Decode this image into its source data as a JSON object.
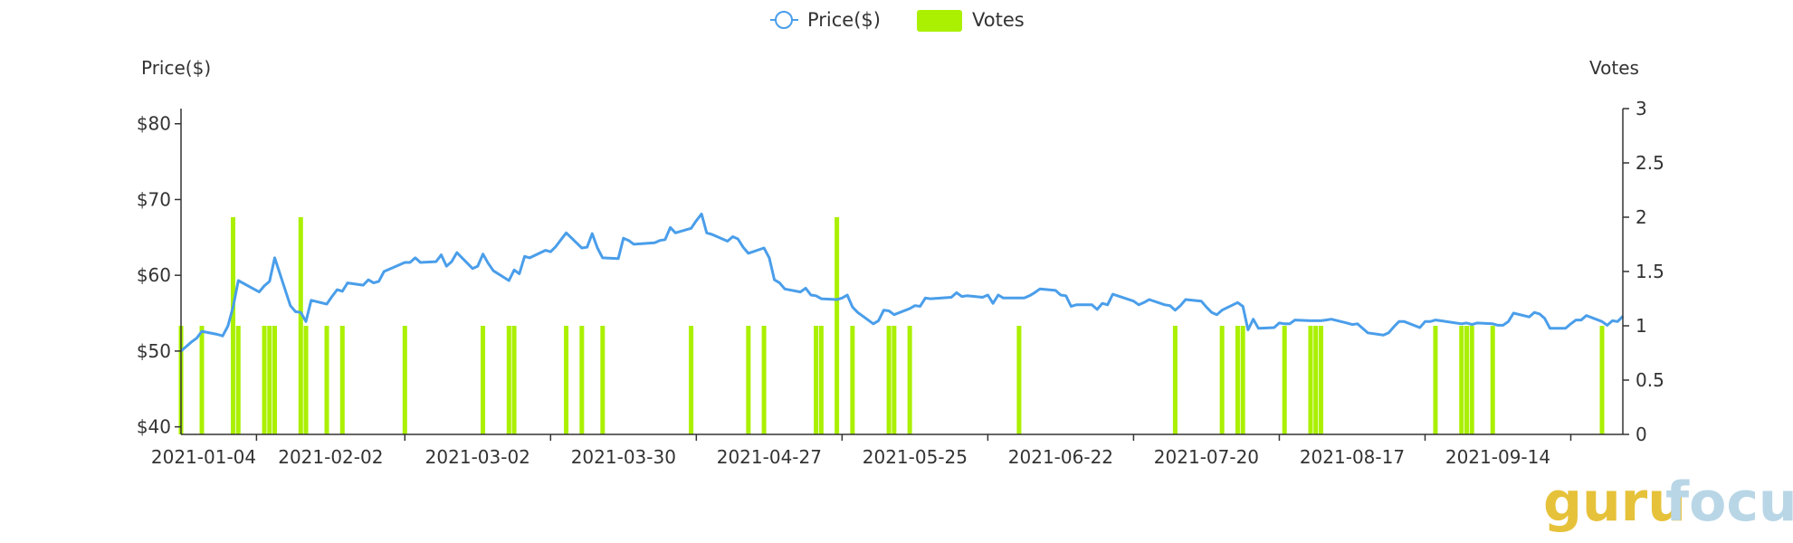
{
  "legend": {
    "price_label": "Price($)",
    "votes_label": "Votes"
  },
  "watermark": {
    "part1": "guru",
    "part2": "focus"
  },
  "colors": {
    "price_line": "#4a9eea",
    "votes_bar": "#aaf000",
    "axis": "#333333"
  },
  "chart_data": {
    "type": "bar+line",
    "x_tick_labels": [
      "2021-01-04",
      "2021-02-02",
      "2021-03-02",
      "2021-03-30",
      "2021-04-27",
      "2021-05-25",
      "2021-06-22",
      "2021-07-20",
      "2021-08-17",
      "2021-09-14"
    ],
    "x_range": [
      "2021-01-04",
      "2021-10-08"
    ],
    "left_axis": {
      "title": "Price($)",
      "range": [
        39,
        82
      ],
      "ticks": [
        40,
        50,
        60,
        70,
        80
      ],
      "tick_labels": [
        "$40",
        "$50",
        "$60",
        "$70",
        "$80"
      ]
    },
    "right_axis": {
      "title": "Votes",
      "range": [
        0,
        3
      ],
      "ticks": [
        0,
        0.5,
        1,
        1.5,
        2,
        2.5,
        3
      ],
      "tick_labels": [
        "0",
        "0.5",
        "1",
        "1.5",
        "2",
        "2.5",
        "3"
      ]
    },
    "series": [
      {
        "name": "Price($)",
        "kind": "line",
        "axis": "left",
        "points": [
          [
            "2021-01-04",
            50.0
          ],
          [
            "2021-01-05",
            50.6
          ],
          [
            "2021-01-06",
            51.2
          ],
          [
            "2021-01-07",
            51.7
          ],
          [
            "2021-01-08",
            52.6
          ],
          [
            "2021-01-11",
            52.2
          ],
          [
            "2021-01-12",
            52.0
          ],
          [
            "2021-01-13",
            53.3
          ],
          [
            "2021-01-14",
            55.8
          ],
          [
            "2021-01-15",
            59.3
          ],
          [
            "2021-01-19",
            57.8
          ],
          [
            "2021-01-20",
            58.6
          ],
          [
            "2021-01-21",
            59.2
          ],
          [
            "2021-01-22",
            62.3
          ],
          [
            "2021-01-25",
            56.0
          ],
          [
            "2021-01-26",
            55.2
          ],
          [
            "2021-01-27",
            55.1
          ],
          [
            "2021-01-28",
            53.9
          ],
          [
            "2021-01-29",
            56.7
          ],
          [
            "2021-02-01",
            56.2
          ],
          [
            "2021-02-02",
            57.2
          ],
          [
            "2021-02-03",
            58.1
          ],
          [
            "2021-02-04",
            57.9
          ],
          [
            "2021-02-05",
            59.0
          ],
          [
            "2021-02-08",
            58.7
          ],
          [
            "2021-02-09",
            59.4
          ],
          [
            "2021-02-10",
            59.0
          ],
          [
            "2021-02-11",
            59.2
          ],
          [
            "2021-02-12",
            60.5
          ],
          [
            "2021-02-16",
            61.7
          ],
          [
            "2021-02-17",
            61.7
          ],
          [
            "2021-02-18",
            62.3
          ],
          [
            "2021-02-19",
            61.7
          ],
          [
            "2021-02-22",
            61.8
          ],
          [
            "2021-02-23",
            62.7
          ],
          [
            "2021-02-24",
            61.2
          ],
          [
            "2021-02-25",
            61.8
          ],
          [
            "2021-02-26",
            63.0
          ],
          [
            "2021-03-01",
            60.9
          ],
          [
            "2021-03-02",
            61.2
          ],
          [
            "2021-03-03",
            62.8
          ],
          [
            "2021-03-04",
            61.6
          ],
          [
            "2021-03-05",
            60.6
          ],
          [
            "2021-03-08",
            59.3
          ],
          [
            "2021-03-09",
            60.7
          ],
          [
            "2021-03-10",
            60.2
          ],
          [
            "2021-03-11",
            62.5
          ],
          [
            "2021-03-12",
            62.3
          ],
          [
            "2021-03-15",
            63.3
          ],
          [
            "2021-03-16",
            63.1
          ],
          [
            "2021-03-17",
            63.8
          ],
          [
            "2021-03-18",
            64.7
          ],
          [
            "2021-03-19",
            65.6
          ],
          [
            "2021-03-22",
            63.6
          ],
          [
            "2021-03-23",
            63.7
          ],
          [
            "2021-03-24",
            65.5
          ],
          [
            "2021-03-25",
            63.6
          ],
          [
            "2021-03-26",
            62.3
          ],
          [
            "2021-03-29",
            62.2
          ],
          [
            "2021-03-30",
            64.9
          ],
          [
            "2021-03-31",
            64.6
          ],
          [
            "2021-04-01",
            64.1
          ],
          [
            "2021-04-05",
            64.3
          ],
          [
            "2021-04-06",
            64.6
          ],
          [
            "2021-04-07",
            64.7
          ],
          [
            "2021-04-08",
            66.3
          ],
          [
            "2021-04-09",
            65.6
          ],
          [
            "2021-04-12",
            66.2
          ],
          [
            "2021-04-13",
            67.2
          ],
          [
            "2021-04-14",
            68.1
          ],
          [
            "2021-04-15",
            65.6
          ],
          [
            "2021-04-16",
            65.4
          ],
          [
            "2021-04-19",
            64.5
          ],
          [
            "2021-04-20",
            65.1
          ],
          [
            "2021-04-21",
            64.8
          ],
          [
            "2021-04-22",
            63.7
          ],
          [
            "2021-04-23",
            62.9
          ],
          [
            "2021-04-26",
            63.6
          ],
          [
            "2021-04-27",
            62.3
          ],
          [
            "2021-04-28",
            59.4
          ],
          [
            "2021-04-29",
            59.0
          ],
          [
            "2021-04-30",
            58.2
          ],
          [
            "2021-05-03",
            57.8
          ],
          [
            "2021-05-04",
            58.3
          ],
          [
            "2021-05-05",
            57.4
          ],
          [
            "2021-05-06",
            57.3
          ],
          [
            "2021-05-07",
            56.9
          ],
          [
            "2021-05-10",
            56.8
          ],
          [
            "2021-05-11",
            57.0
          ],
          [
            "2021-05-12",
            57.4
          ],
          [
            "2021-05-13",
            55.8
          ],
          [
            "2021-05-14",
            55.1
          ],
          [
            "2021-05-17",
            53.6
          ],
          [
            "2021-05-18",
            54.0
          ],
          [
            "2021-05-19",
            55.4
          ],
          [
            "2021-05-20",
            55.3
          ],
          [
            "2021-05-21",
            54.8
          ],
          [
            "2021-05-24",
            55.6
          ],
          [
            "2021-05-25",
            56.0
          ],
          [
            "2021-05-26",
            55.9
          ],
          [
            "2021-05-27",
            57.0
          ],
          [
            "2021-05-28",
            56.9
          ],
          [
            "2021-06-01",
            57.1
          ],
          [
            "2021-06-02",
            57.7
          ],
          [
            "2021-06-03",
            57.2
          ],
          [
            "2021-06-04",
            57.3
          ],
          [
            "2021-06-07",
            57.1
          ],
          [
            "2021-06-08",
            57.4
          ],
          [
            "2021-06-09",
            56.3
          ],
          [
            "2021-06-10",
            57.4
          ],
          [
            "2021-06-11",
            57.0
          ],
          [
            "2021-06-14",
            57.0
          ],
          [
            "2021-06-15",
            57.0
          ],
          [
            "2021-06-16",
            57.3
          ],
          [
            "2021-06-17",
            57.7
          ],
          [
            "2021-06-18",
            58.2
          ],
          [
            "2021-06-21",
            58.0
          ],
          [
            "2021-06-22",
            57.4
          ],
          [
            "2021-06-23",
            57.3
          ],
          [
            "2021-06-24",
            55.9
          ],
          [
            "2021-06-25",
            56.1
          ],
          [
            "2021-06-28",
            56.1
          ],
          [
            "2021-06-29",
            55.5
          ],
          [
            "2021-06-30",
            56.3
          ],
          [
            "2021-07-01",
            56.1
          ],
          [
            "2021-07-02",
            57.5
          ],
          [
            "2021-07-06",
            56.6
          ],
          [
            "2021-07-07",
            56.1
          ],
          [
            "2021-07-08",
            56.4
          ],
          [
            "2021-07-09",
            56.8
          ],
          [
            "2021-07-12",
            56.1
          ],
          [
            "2021-07-13",
            56.0
          ],
          [
            "2021-07-14",
            55.4
          ],
          [
            "2021-07-15",
            56.0
          ],
          [
            "2021-07-16",
            56.8
          ],
          [
            "2021-07-19",
            56.6
          ],
          [
            "2021-07-20",
            55.8
          ],
          [
            "2021-07-21",
            55.1
          ],
          [
            "2021-07-22",
            54.8
          ],
          [
            "2021-07-23",
            55.4
          ],
          [
            "2021-07-26",
            56.4
          ],
          [
            "2021-07-27",
            55.9
          ],
          [
            "2021-07-28",
            52.8
          ],
          [
            "2021-07-29",
            54.2
          ],
          [
            "2021-07-30",
            53.0
          ],
          [
            "2021-08-02",
            53.1
          ],
          [
            "2021-08-03",
            53.7
          ],
          [
            "2021-08-04",
            53.6
          ],
          [
            "2021-08-05",
            53.6
          ],
          [
            "2021-08-06",
            54.1
          ],
          [
            "2021-08-09",
            54.0
          ],
          [
            "2021-08-10",
            54.0
          ],
          [
            "2021-08-11",
            54.0
          ],
          [
            "2021-08-12",
            54.1
          ],
          [
            "2021-08-13",
            54.2
          ],
          [
            "2021-08-16",
            53.7
          ],
          [
            "2021-08-17",
            53.5
          ],
          [
            "2021-08-18",
            53.6
          ],
          [
            "2021-08-19",
            53.0
          ],
          [
            "2021-08-20",
            52.4
          ],
          [
            "2021-08-23",
            52.1
          ],
          [
            "2021-08-24",
            52.4
          ],
          [
            "2021-08-25",
            53.2
          ],
          [
            "2021-08-26",
            53.9
          ],
          [
            "2021-08-27",
            53.9
          ],
          [
            "2021-08-30",
            53.1
          ],
          [
            "2021-08-31",
            53.9
          ],
          [
            "2021-09-01",
            53.9
          ],
          [
            "2021-09-02",
            54.1
          ],
          [
            "2021-09-03",
            54.0
          ],
          [
            "2021-09-07",
            53.6
          ],
          [
            "2021-09-08",
            53.7
          ],
          [
            "2021-09-09",
            53.5
          ],
          [
            "2021-09-10",
            53.7
          ],
          [
            "2021-09-13",
            53.6
          ],
          [
            "2021-09-14",
            53.4
          ],
          [
            "2021-09-15",
            53.4
          ],
          [
            "2021-09-16",
            53.9
          ],
          [
            "2021-09-17",
            55.0
          ],
          [
            "2021-09-20",
            54.5
          ],
          [
            "2021-09-21",
            55.1
          ],
          [
            "2021-09-22",
            54.9
          ],
          [
            "2021-09-23",
            54.3
          ],
          [
            "2021-09-24",
            53.0
          ],
          [
            "2021-09-27",
            53.0
          ],
          [
            "2021-09-28",
            53.6
          ],
          [
            "2021-09-29",
            54.1
          ],
          [
            "2021-09-30",
            54.1
          ],
          [
            "2021-10-01",
            54.7
          ],
          [
            "2021-10-04",
            53.9
          ],
          [
            "2021-10-05",
            53.4
          ],
          [
            "2021-10-06",
            54.0
          ],
          [
            "2021-10-07",
            53.9
          ],
          [
            "2021-10-08",
            54.6
          ]
        ]
      },
      {
        "name": "Votes",
        "kind": "bar",
        "axis": "right",
        "points": [
          [
            "2021-01-04",
            1
          ],
          [
            "2021-01-08",
            1
          ],
          [
            "2021-01-14",
            2
          ],
          [
            "2021-01-15",
            1
          ],
          [
            "2021-01-20",
            1
          ],
          [
            "2021-01-21",
            1
          ],
          [
            "2021-01-22",
            1
          ],
          [
            "2021-01-27",
            2
          ],
          [
            "2021-01-28",
            1
          ],
          [
            "2021-02-01",
            1
          ],
          [
            "2021-02-04",
            1
          ],
          [
            "2021-02-16",
            1
          ],
          [
            "2021-03-03",
            1
          ],
          [
            "2021-03-08",
            1
          ],
          [
            "2021-03-09",
            1
          ],
          [
            "2021-03-19",
            1
          ],
          [
            "2021-03-22",
            1
          ],
          [
            "2021-03-26",
            1
          ],
          [
            "2021-04-12",
            1
          ],
          [
            "2021-04-23",
            1
          ],
          [
            "2021-04-26",
            1
          ],
          [
            "2021-05-06",
            1
          ],
          [
            "2021-05-07",
            1
          ],
          [
            "2021-05-10",
            2
          ],
          [
            "2021-05-13",
            1
          ],
          [
            "2021-05-20",
            1
          ],
          [
            "2021-05-21",
            1
          ],
          [
            "2021-05-24",
            1
          ],
          [
            "2021-06-14",
            1
          ],
          [
            "2021-07-14",
            1
          ],
          [
            "2021-07-23",
            1
          ],
          [
            "2021-07-26",
            1
          ],
          [
            "2021-07-27",
            1
          ],
          [
            "2021-08-04",
            1
          ],
          [
            "2021-08-09",
            1
          ],
          [
            "2021-08-10",
            1
          ],
          [
            "2021-08-11",
            1
          ],
          [
            "2021-09-02",
            1
          ],
          [
            "2021-09-07",
            1
          ],
          [
            "2021-09-08",
            1
          ],
          [
            "2021-09-09",
            1
          ],
          [
            "2021-09-13",
            1
          ],
          [
            "2021-10-04",
            1
          ]
        ]
      }
    ],
    "legend_position": "top-center",
    "grid": false
  }
}
